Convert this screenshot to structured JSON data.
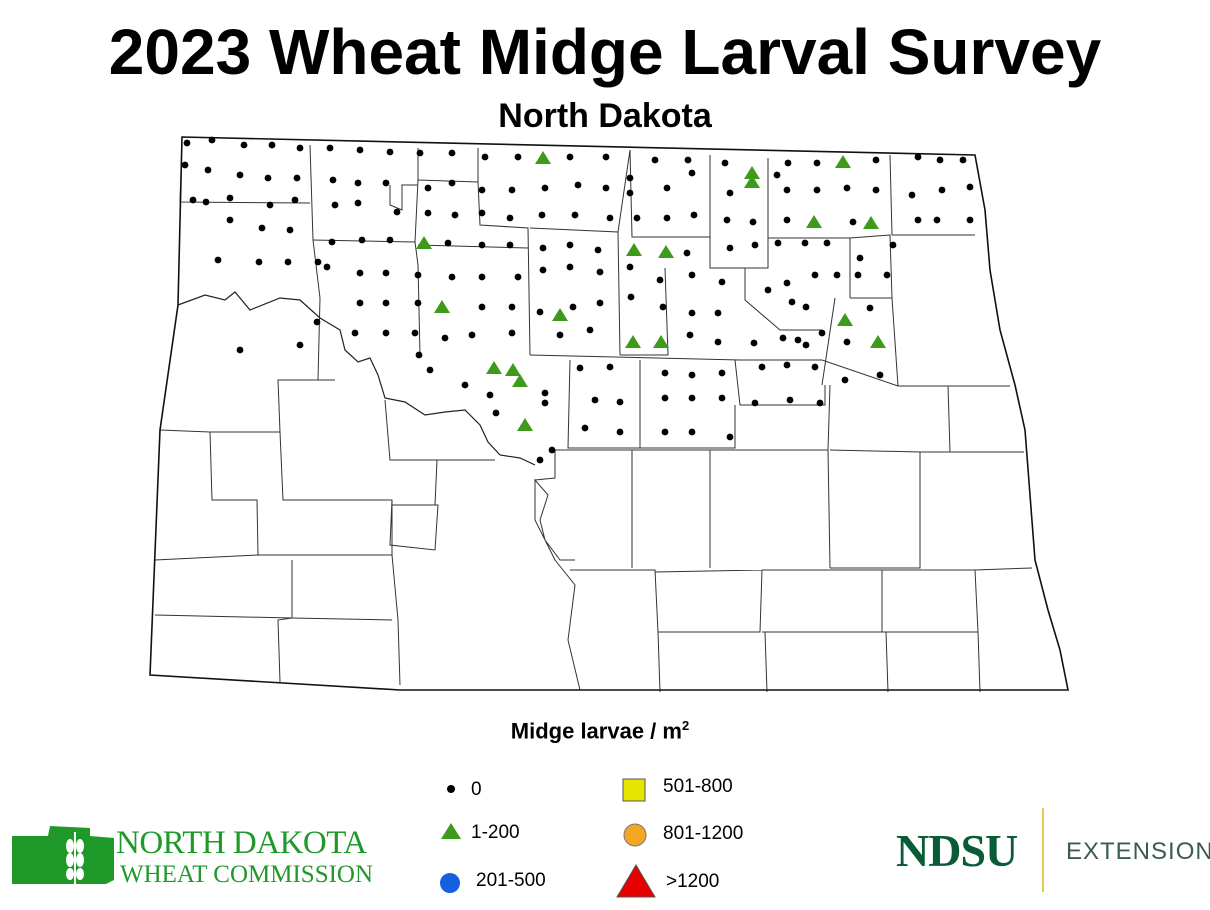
{
  "title": "2023 Wheat Midge Larval Survey",
  "subtitle": "North Dakota",
  "legend": {
    "title": "Midge larvae / m",
    "title_sup": "2",
    "items": [
      {
        "symbol": "dot",
        "label": "0",
        "color": "#000000"
      },
      {
        "symbol": "triangle",
        "label": "1-200",
        "color": "#3d9a1a"
      },
      {
        "symbol": "circle",
        "label": "201-500",
        "color": "#1560e0"
      },
      {
        "symbol": "square",
        "label": "501-800",
        "color": "#e5e500"
      },
      {
        "symbol": "circle",
        "label": "801-1200",
        "color": "#f5a623"
      },
      {
        "symbol": "triangle",
        "label": ">1200",
        "color": "#e60000"
      }
    ]
  },
  "logos": {
    "left_line1": "NORTH DAKOTA",
    "left_line2": "WHEAT COMMISSION",
    "ndsu": "NDSU",
    "extension": "EXTENSION"
  },
  "colors": {
    "map_outline": "#111111",
    "county_lines": "#333333",
    "logo_green": "#1f9a2a",
    "ndsu_green": "#0a5c36"
  }
}
